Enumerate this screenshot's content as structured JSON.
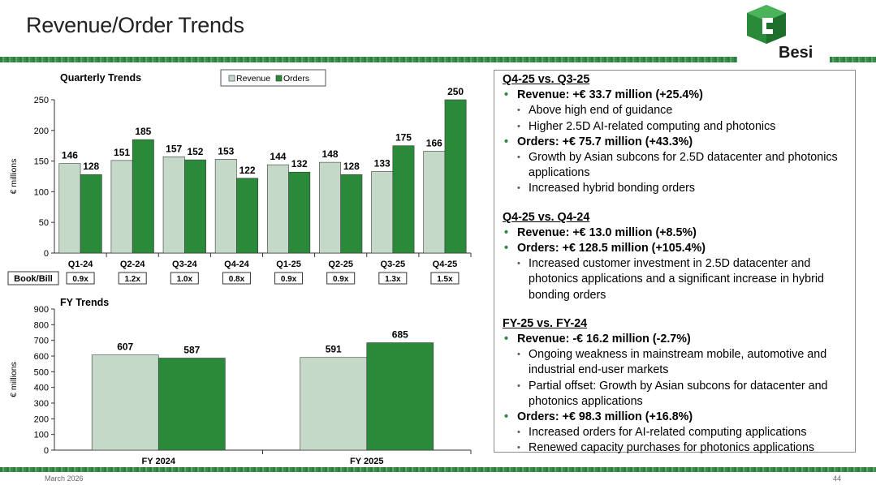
{
  "slide": {
    "title": "Revenue/Order Trends",
    "footer_date": "March 2026",
    "page_number": "44",
    "logo_text": "Besi"
  },
  "colors": {
    "revenue": "#c5d9c8",
    "orders": "#2b8a3a",
    "stripe": "#3f8d4d",
    "accent": "#2d8a3e"
  },
  "chart_data": [
    {
      "type": "bar",
      "title": "Quarterly Trends",
      "ylabel": "€ millions",
      "xlabel": "",
      "ylim": [
        0,
        250
      ],
      "yticks": [
        0,
        50,
        100,
        150,
        200,
        250
      ],
      "categories": [
        "Q1-24",
        "Q2-24",
        "Q3-24",
        "Q4-24",
        "Q1-25",
        "Q2-25",
        "Q3-25",
        "Q4-25"
      ],
      "series": [
        {
          "name": "Revenue",
          "values": [
            146,
            151,
            157,
            153,
            144,
            148,
            133,
            166
          ]
        },
        {
          "name": "Orders",
          "values": [
            128,
            185,
            152,
            122,
            132,
            128,
            175,
            250
          ]
        }
      ],
      "legend_position": "top",
      "book_bill_label": "Book/Bill",
      "book_bill": [
        "0.9x",
        "1.2x",
        "1.0x",
        "0.8x",
        "0.9x",
        "0.9x",
        "1.3x",
        "1.5x"
      ]
    },
    {
      "type": "bar",
      "title": "FY Trends",
      "ylabel": "€ millions",
      "xlabel": "",
      "ylim": [
        0,
        900
      ],
      "yticks": [
        0,
        100,
        200,
        300,
        400,
        500,
        600,
        700,
        800,
        900
      ],
      "categories": [
        "FY 2024",
        "FY 2025"
      ],
      "series": [
        {
          "name": "Revenue",
          "values": [
            607,
            591
          ]
        },
        {
          "name": "Orders",
          "values": [
            587,
            685
          ]
        }
      ]
    }
  ],
  "commentary": [
    {
      "heading": "Q4-25 vs. Q3-25",
      "items": [
        {
          "text": "Revenue: +€ 33.7 million (+25.4%)",
          "sub": [
            "Above high end of guidance",
            "Higher 2.5D AI-related computing and photonics"
          ]
        },
        {
          "text": "Orders: +€ 75.7 million (+43.3%)",
          "sub": [
            "Growth by Asian subcons for 2.5D datacenter and photonics applications",
            "Increased hybrid bonding orders"
          ]
        }
      ]
    },
    {
      "heading": "Q4-25 vs. Q4-24",
      "items": [
        {
          "text": "Revenue: +€ 13.0 million (+8.5%)",
          "sub": []
        },
        {
          "text": "Orders: +€ 128.5 million (+105.4%)",
          "sub": [
            "Increased customer investment in 2.5D datacenter and photonics applications and a significant increase in hybrid bonding orders"
          ]
        }
      ]
    },
    {
      "heading": "FY-25 vs. FY-24",
      "items": [
        {
          "text": "Revenue: -€ 16.2 million (-2.7%)",
          "sub": [
            "Ongoing weakness in mainstream mobile, automotive and industrial end-user markets",
            "Partial offset: Growth by Asian subcons for datacenter and photonics applications"
          ]
        },
        {
          "text": "Orders: +€ 98.3 million (+16.8%)",
          "sub": [
            "Increased orders for AI-related computing applications",
            "Renewed capacity purchases for photonics applications"
          ]
        }
      ]
    }
  ]
}
